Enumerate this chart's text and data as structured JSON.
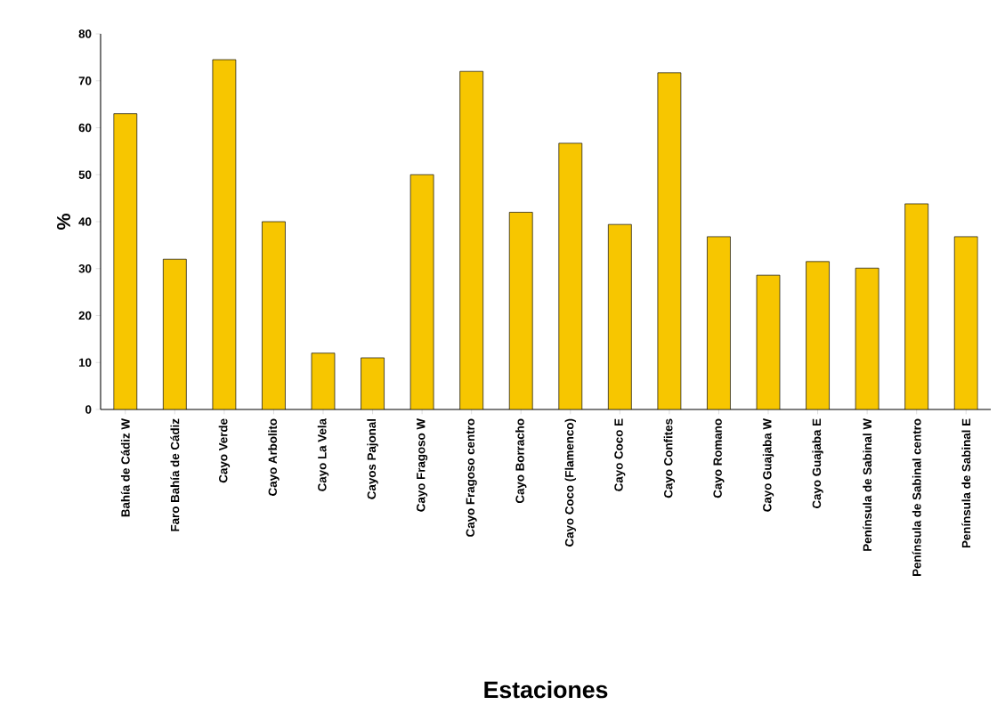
{
  "chart_data": {
    "type": "bar",
    "xlabel": "Estaciones",
    "ylabel": "%",
    "categories": [
      "Bahía de Cádiz W",
      "Faro Bahía de Cádiz",
      "Cayo Verde",
      "Cayo Arbolito",
      "Cayo La Vela",
      "Cayos Pajonal",
      "Cayo Fragoso W",
      "Cayo Fragoso centro",
      "Cayo Borracho",
      "Cayo Coco (Flamenco)",
      "Cayo Coco E",
      "Cayo Confites",
      "Cayo Romano",
      "Cayo Guajaba W",
      "Cayo Guajaba E",
      "Península de Sabinal W",
      "Península de Sabinal centro",
      "Península de Sabinal E"
    ],
    "values": [
      63,
      32,
      74.5,
      40,
      12,
      11,
      50,
      72,
      42,
      56.7,
      39.4,
      71.7,
      36.8,
      28.6,
      31.5,
      30.1,
      43.8,
      36.8
    ],
    "color": "#f7c600",
    "ylim": [
      0,
      80
    ],
    "yticks": [
      0,
      10,
      20,
      30,
      40,
      50,
      60,
      70,
      80
    ],
    "grid": false
  }
}
